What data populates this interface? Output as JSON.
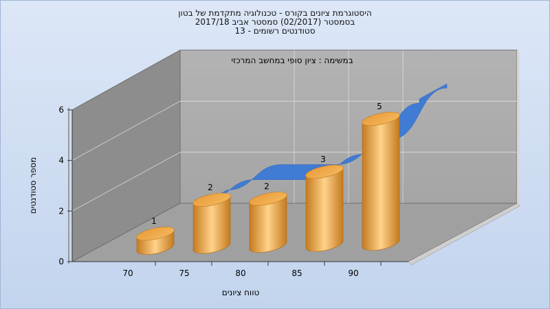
{
  "chart_data": {
    "type": "bar",
    "title_lines": [
      "היסטוגרמת ציונים בקורס - טכנולוגיה מתקדמת של בטון",
      "בסמסטר (02/2017) סמסטר אביב 2017/18",
      "סטודנטים רשומים - 13"
    ],
    "annotation": "במשימה : ציון סופי במחשב המרכזי",
    "xlabel": "טווח ציונים",
    "ylabel": "מספר סטודנטים",
    "categories": [
      "70",
      "75",
      "80",
      "85",
      "90"
    ],
    "values": [
      1,
      2,
      2,
      3,
      5
    ],
    "y_ticks": [
      "0",
      "2",
      "4",
      "6"
    ],
    "ylim": [
      0,
      6
    ],
    "grid": true,
    "bar_color": "#f0a94a",
    "curve_color": "#3a78d6"
  }
}
